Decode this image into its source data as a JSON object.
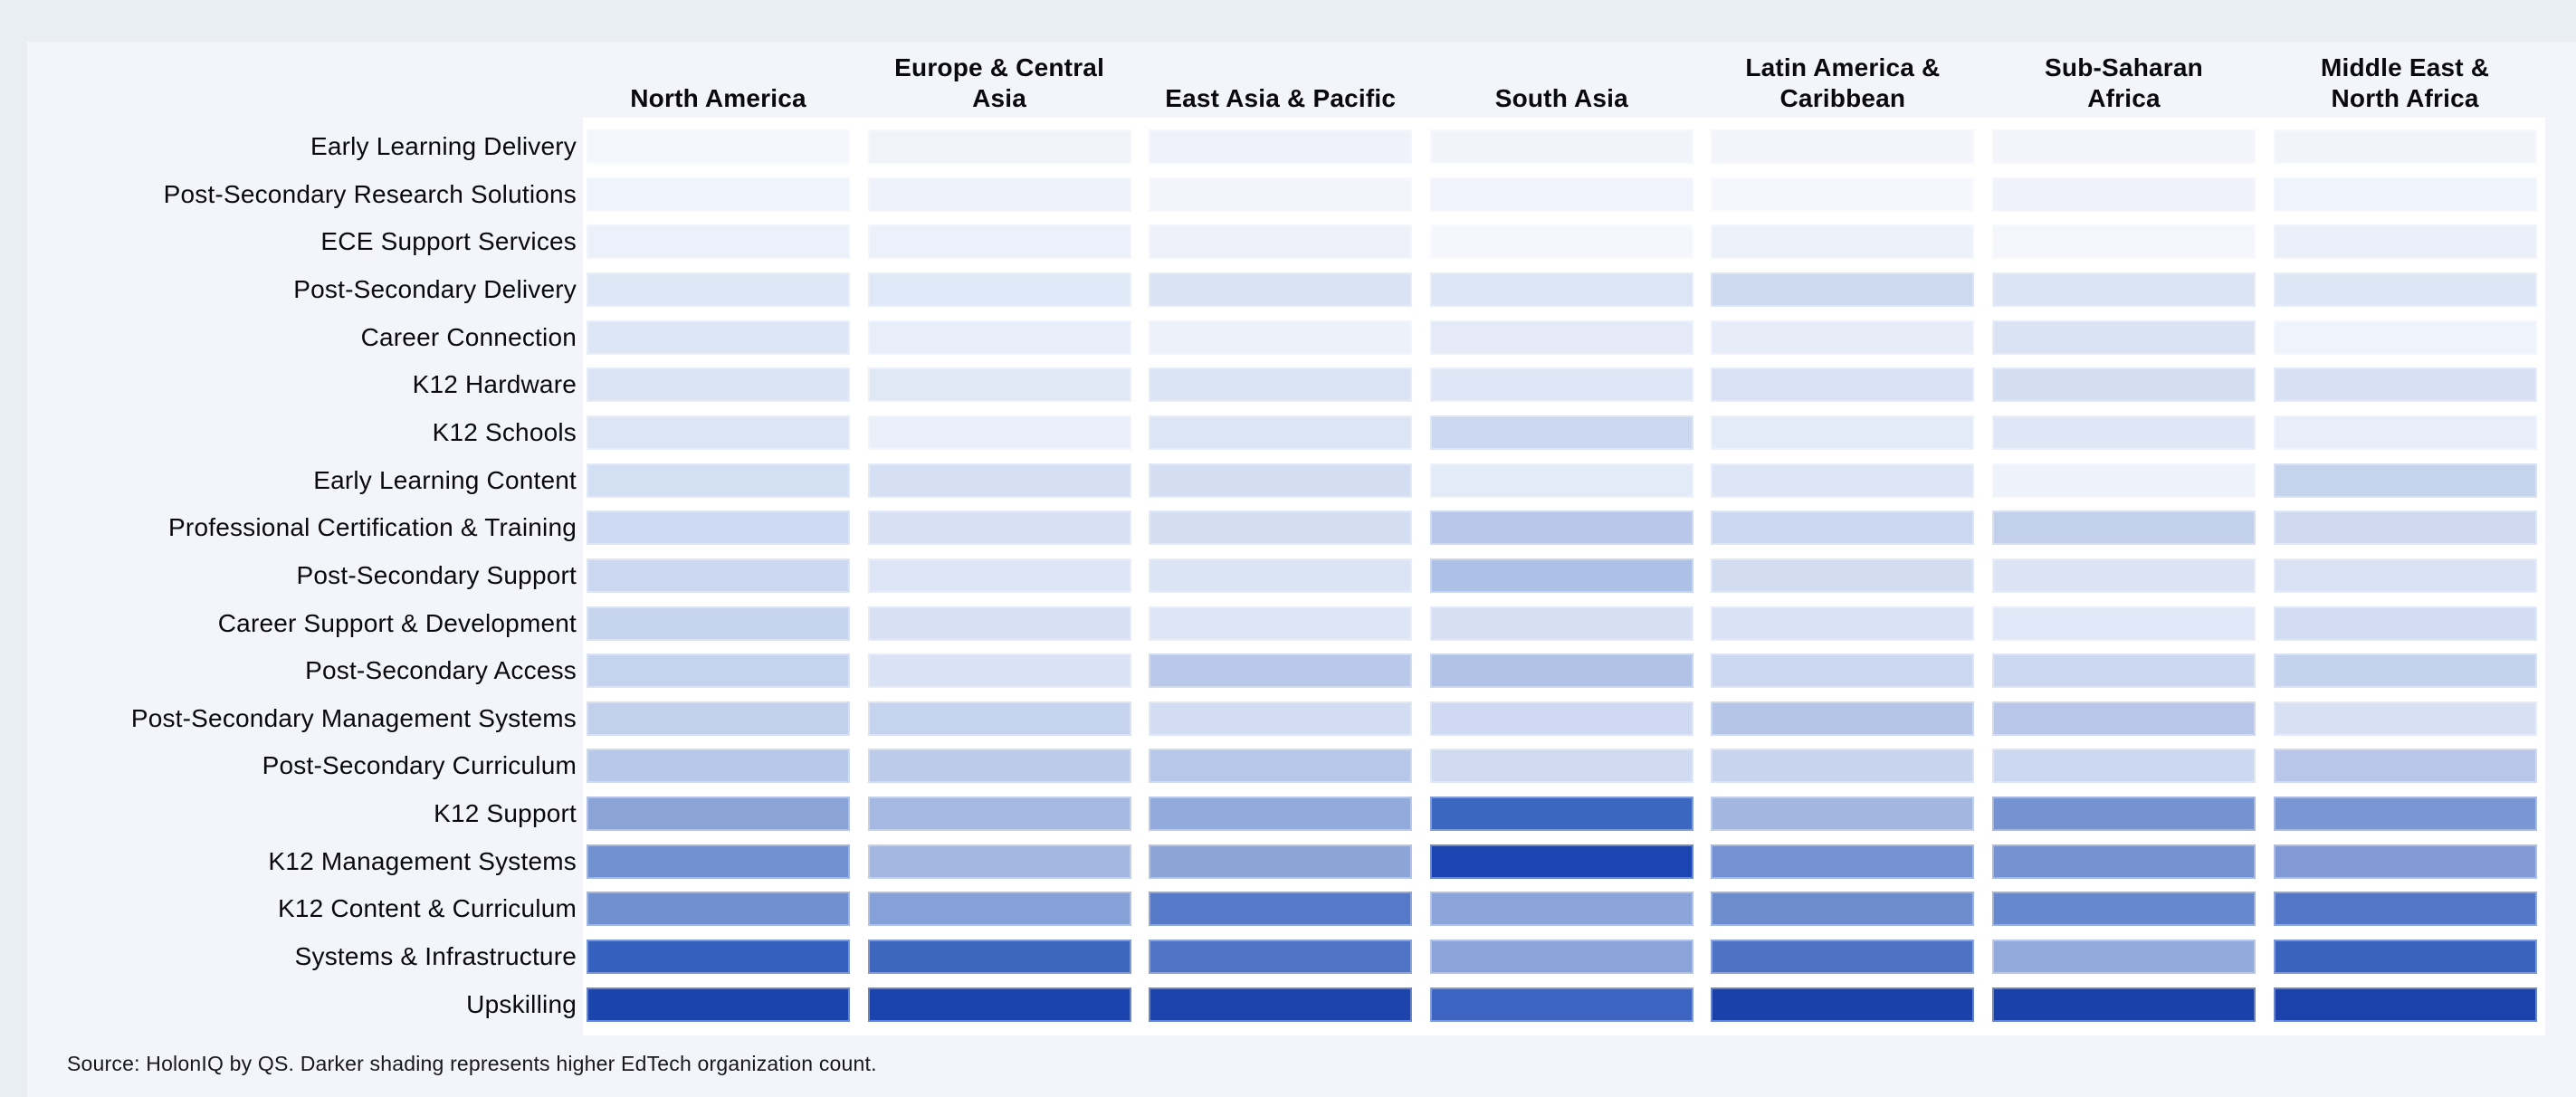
{
  "page": {
    "background": "#e9edf4",
    "card_background": "#f3f5fa",
    "plot_background": "#ffffff",
    "source_note": "Source: HolonIQ by QS. Darker shading represents higher EdTech organization  count."
  },
  "chart_data": {
    "type": "heatmap",
    "title": "",
    "legend_note": "Darker shading represents higher EdTech organization count",
    "palette": {
      "lightest": "#f5f7fc",
      "darkest": "#1b41a8"
    },
    "columns": [
      {
        "label": "North America",
        "lines": [
          "North America"
        ]
      },
      {
        "label": "Europe & Central Asia",
        "lines": [
          "Europe & Central",
          "Asia"
        ]
      },
      {
        "label": "East Asia & Pacific",
        "lines": [
          "East Asia & Pacific"
        ]
      },
      {
        "label": "South Asia",
        "lines": [
          "South Asia"
        ]
      },
      {
        "label": "Latin America & Caribbean",
        "lines": [
          "Latin America &",
          "Caribbean"
        ]
      },
      {
        "label": "Sub-Saharan Africa",
        "lines": [
          "Sub-Saharan",
          "Africa"
        ]
      },
      {
        "label": "Middle East & North Africa",
        "lines": [
          "Middle East &",
          "North Africa"
        ]
      }
    ],
    "rows": [
      "Early Learning Delivery",
      "Post-Secondary Research Solutions",
      "ECE Support Services",
      "Post-Secondary Delivery",
      "Career Connection",
      "K12 Hardware",
      "K12 Schools",
      "Early Learning Content",
      "Professional Certification & Training",
      "Post-Secondary Support",
      "Career Support & Development",
      "Post-Secondary Access",
      "Post-Secondary Management Systems",
      "Post-Secondary Curriculum",
      "K12 Support",
      "K12 Management Systems",
      "K12 Content & Curriculum",
      "Systems & Infrastructure",
      "Upskilling"
    ],
    "shades": [
      [
        "#f3f6fc",
        "#f0f3fa",
        "#eff2fa",
        "#f2f4fb",
        "#f3f5fb",
        "#f3f5fb",
        "#f1f4fa"
      ],
      [
        "#eff3fb",
        "#eef2fa",
        "#f2f5fb",
        "#f0f3fb",
        "#f5f7fc",
        "#eff2fa",
        "#eff3fb"
      ],
      [
        "#ebf0fa",
        "#ecf0fa",
        "#eef1fa",
        "#f5f7fc",
        "#edf1fa",
        "#f4f6fb",
        "#eaeff9"
      ],
      [
        "#dde7f6",
        "#dfe8f6",
        "#d9e3f4",
        "#dce5f5",
        "#ccd9ee",
        "#dbe4f4",
        "#dde6f5"
      ],
      [
        "#dce6f5",
        "#e7edf9",
        "#ecf1fa",
        "#e4eaf8",
        "#e6ecf8",
        "#dae3f4",
        "#eff3fb"
      ],
      [
        "#dae4f5",
        "#e0e8f6",
        "#dbe4f5",
        "#dfe7f6",
        "#d9e2f4",
        "#d4def2",
        "#d8e1f4"
      ],
      [
        "#dbe5f5",
        "#eaeff9",
        "#dce5f5",
        "#ccd7f0",
        "#e4ebf8",
        "#dfe7f6",
        "#e7edf9"
      ],
      [
        "#d3dff3",
        "#d6e0f4",
        "#d3def3",
        "#e3eaf8",
        "#dde5f6",
        "#eef2fa",
        "#c5d3ed"
      ],
      [
        "#ccd9f0",
        "#d8e1f4",
        "#d4def3",
        "#b7c6e9",
        "#ccd8f0",
        "#c3d0ec",
        "#cfdaf1"
      ],
      [
        "#ccd8ef",
        "#dde5f6",
        "#dbe4f5",
        "#adc1e6",
        "#d3ddf2",
        "#dbe3f5",
        "#d9e2f4"
      ],
      [
        "#c7d4ee",
        "#d8e1f4",
        "#dee5f6",
        "#d6dff4",
        "#dae2f5",
        "#e0e7f6",
        "#d2dcf2"
      ],
      [
        "#c6d3ee",
        "#dae2f5",
        "#bac9ea",
        "#b1c2e7",
        "#ccd7f0",
        "#ccd7f0",
        "#c5d2ee"
      ],
      [
        "#c2d0ec",
        "#c6d3ee",
        "#d2dcf2",
        "#cfd9f1",
        "#b5c5e8",
        "#b8c7e9",
        "#d8e0f4"
      ],
      [
        "#b8c8e9",
        "#bccbea",
        "#b7c7e9",
        "#d0daf1",
        "#c8d4ee",
        "#ccd7f0",
        "#b8c7e9"
      ],
      [
        "#8aa4d8",
        "#a5b8e1",
        "#93abdc",
        "#3b67c0",
        "#a3b6e0",
        "#7693d1",
        "#7b97d3"
      ],
      [
        "#7191d0",
        "#a3b7e1",
        "#8ca5d9",
        "#1b45b0",
        "#7491d1",
        "#7692d1",
        "#8199d5"
      ],
      [
        "#7090cf",
        "#86a1d7",
        "#5679c8",
        "#8ba4d9",
        "#6c8cce",
        "#6888cd",
        "#5377c6"
      ],
      [
        "#3560bd",
        "#3d66bf",
        "#5074c5",
        "#8aa3d8",
        "#4f73c4",
        "#92a9db",
        "#3a63be"
      ],
      [
        "#1c44ad",
        "#1c44ae",
        "#1d44ad",
        "#3c64c0",
        "#1a41aa",
        "#1a41aa",
        "#1b42ab"
      ]
    ]
  }
}
